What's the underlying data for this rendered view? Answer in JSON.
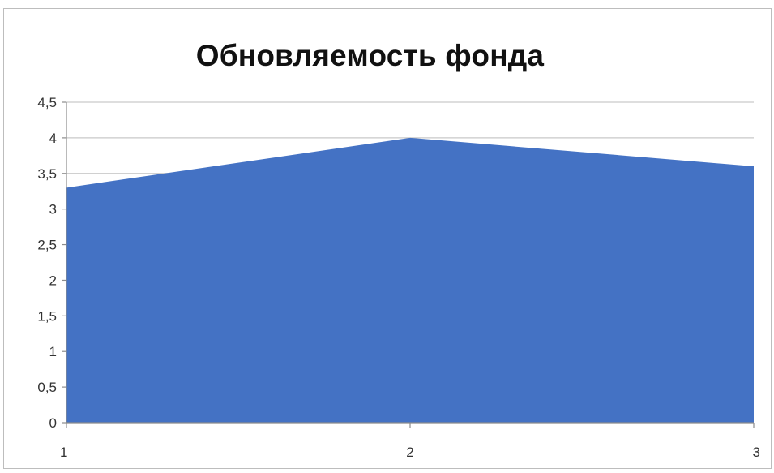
{
  "chart_data": {
    "type": "area",
    "title": "Обновляемость фонда",
    "x": [
      1,
      2,
      3
    ],
    "x_tick_labels": [
      "1",
      "2",
      "3"
    ],
    "values": [
      3.3,
      4,
      3.6
    ],
    "ylim": [
      0,
      4.5
    ],
    "y_ticks": [
      0,
      0.5,
      1,
      1.5,
      2,
      2.5,
      3,
      3.5,
      4,
      4.5
    ],
    "y_tick_labels": [
      "0",
      "0,5",
      "1",
      "1,5",
      "2",
      "2,5",
      "3",
      "3,5",
      "4",
      "4,5"
    ],
    "grid": true,
    "legend": "none",
    "colors": {
      "area": "#4472c4",
      "grid": "#c9c9c9",
      "axis": "#8c8c8c"
    }
  }
}
